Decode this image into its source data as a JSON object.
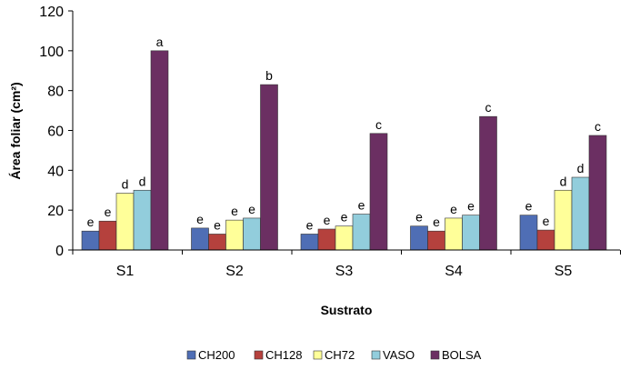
{
  "chart_data": {
    "type": "bar",
    "xlabel": "Sustrato",
    "ylabel": "Área foliar (cm²)",
    "ylim": [
      0,
      120
    ],
    "yticks": [
      0,
      20,
      40,
      60,
      80,
      100,
      120
    ],
    "grid": false,
    "legend_position": "bottom",
    "categories": [
      "S1",
      "S2",
      "S3",
      "S4",
      "S5"
    ],
    "series": [
      {
        "name": "CH200",
        "color": "#4F6EB5",
        "values": [
          9.5,
          11,
          8,
          12,
          17.5
        ],
        "labels": [
          "e",
          "e",
          "e",
          "e",
          "e"
        ]
      },
      {
        "name": "CH128",
        "color": "#B5413D",
        "values": [
          14.5,
          8,
          10.5,
          9.5,
          10
        ],
        "labels": [
          "e",
          "e",
          "e",
          "e",
          "e"
        ]
      },
      {
        "name": "CH72",
        "color": "#FFFF99",
        "values": [
          28.5,
          15,
          12,
          16,
          30
        ],
        "labels": [
          "d",
          "e",
          "e",
          "e",
          "d"
        ]
      },
      {
        "name": "VASO",
        "color": "#92CDDC",
        "values": [
          30,
          16,
          18,
          17.5,
          36.5
        ],
        "labels": [
          "d",
          "e",
          "e",
          "e",
          "d"
        ]
      },
      {
        "name": "BOLSA",
        "color": "#6B2F62",
        "values": [
          100,
          83,
          58.5,
          67,
          57.5
        ],
        "labels": [
          "a",
          "b",
          "c",
          "c",
          "c"
        ]
      }
    ]
  }
}
